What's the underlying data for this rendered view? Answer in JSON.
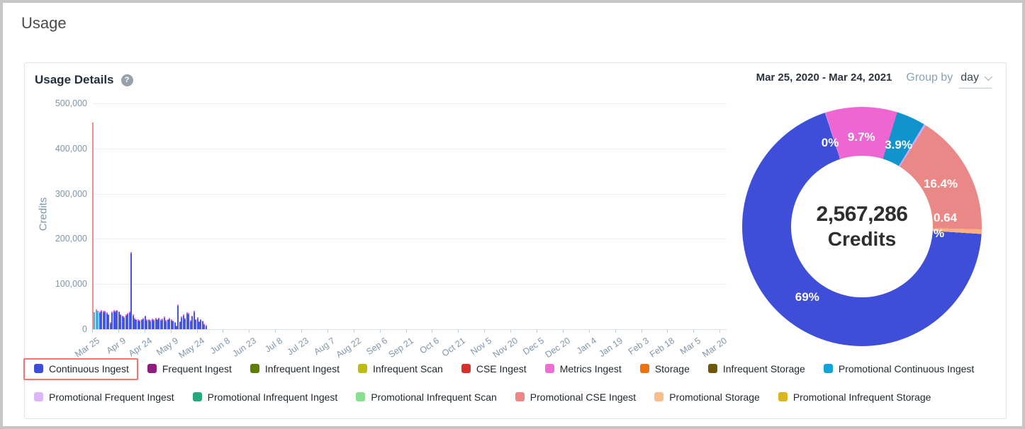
{
  "page": {
    "title": "Usage"
  },
  "card": {
    "title": "Usage Details",
    "help_icon_glyph": "?",
    "date_range": "Mar 25, 2020 - Mar 24, 2021",
    "group_by_label": "Group by",
    "group_by_value": "day"
  },
  "chart_data": [
    {
      "type": "bar",
      "title": "",
      "xlabel": "",
      "ylabel": "Credits",
      "ylim": [
        0,
        500000
      ],
      "ytick_labels": [
        "0",
        "100,000",
        "200,000",
        "300,000",
        "400,000",
        "500,000"
      ],
      "yticks": [
        0,
        100000,
        200000,
        300000,
        400000,
        500000
      ],
      "grid": true,
      "xtick_interval_days": 15,
      "date_range_days": 365,
      "xtick_labels": [
        "Mar 25",
        "Apr 9",
        "Apr 24",
        "May 9",
        "May 24",
        "Jun 8",
        "Jun 23",
        "Jul 8",
        "Jul 23",
        "Aug 7",
        "Aug 22",
        "Sep 6",
        "Sep 21",
        "Oct 6",
        "Oct 21",
        "Nov 5",
        "Nov 20",
        "Dec 5",
        "Dec 20",
        "Jan 4",
        "Jan 19",
        "Feb 3",
        "Feb 18",
        "Mar 5",
        "Mar 20"
      ],
      "bar_format": [
        "credits",
        "series_key",
        "metrics_tip_credits"
      ],
      "bar_series_colors": {
        "salmon": "#f2908e",
        "cyan": "#33b6e8",
        "blue": "#4556e3",
        "tip": "#ee6fd4"
      },
      "bar_series_names": {
        "salmon": "Promotional CSE Ingest",
        "cyan": "Promotional Continuous Ingest",
        "blue": "Continuous Ingest",
        "tip": "Metrics Ingest"
      },
      "bars": [
        [
          458000,
          "salmon",
          0
        ],
        [
          36000,
          "cyan",
          2000
        ],
        [
          41000,
          "cyan",
          2000
        ],
        [
          38000,
          "cyan",
          2000
        ],
        [
          36000,
          "blue",
          3000
        ],
        [
          39000,
          "blue",
          3000
        ],
        [
          37000,
          "blue",
          3000
        ],
        [
          38000,
          "blue",
          3000
        ],
        [
          35000,
          "blue",
          2500
        ],
        [
          31000,
          "blue",
          2500
        ],
        [
          13000,
          "blue",
          2000
        ],
        [
          36000,
          "blue",
          3000
        ],
        [
          39000,
          "blue",
          3000
        ],
        [
          38000,
          "blue",
          3000
        ],
        [
          40000,
          "blue",
          3000
        ],
        [
          37000,
          "blue",
          2500
        ],
        [
          31000,
          "blue",
          2500
        ],
        [
          28000,
          "blue",
          2500
        ],
        [
          25000,
          "blue",
          2500
        ],
        [
          30000,
          "blue",
          2500
        ],
        [
          33000,
          "blue",
          2500
        ],
        [
          36000,
          "blue",
          3000
        ],
        [
          167000,
          "blue",
          4000
        ],
        [
          30000,
          "blue",
          2500
        ],
        [
          22000,
          "blue",
          2500
        ],
        [
          20000,
          "blue",
          2000
        ],
        [
          19000,
          "blue",
          2000
        ],
        [
          18000,
          "blue",
          2000
        ],
        [
          20000,
          "blue",
          2000
        ],
        [
          22000,
          "blue",
          2500
        ],
        [
          28000,
          "blue",
          2500
        ],
        [
          19000,
          "blue",
          2000
        ],
        [
          20000,
          "blue",
          2000
        ],
        [
          18000,
          "blue",
          2000
        ],
        [
          21000,
          "blue",
          2000
        ],
        [
          19000,
          "blue",
          2000
        ],
        [
          22000,
          "blue",
          2500
        ],
        [
          20000,
          "blue",
          2000
        ],
        [
          23000,
          "blue",
          2500
        ],
        [
          19000,
          "blue",
          2000
        ],
        [
          21000,
          "blue",
          2000
        ],
        [
          25000,
          "blue",
          2500
        ],
        [
          18000,
          "blue",
          2000
        ],
        [
          20000,
          "blue",
          2000
        ],
        [
          22000,
          "blue",
          2000
        ],
        [
          19000,
          "blue",
          2000
        ],
        [
          17000,
          "blue",
          2000
        ],
        [
          14000,
          "blue",
          2000
        ],
        [
          6000,
          "blue",
          1500
        ],
        [
          52000,
          "blue",
          3000
        ],
        [
          15000,
          "blue",
          2000
        ],
        [
          25000,
          "blue",
          2500
        ],
        [
          30000,
          "blue",
          2500
        ],
        [
          22000,
          "blue",
          2000
        ],
        [
          35000,
          "blue",
          3000
        ],
        [
          33000,
          "blue",
          2500
        ],
        [
          18000,
          "blue",
          2000
        ],
        [
          28000,
          "blue",
          2500
        ],
        [
          38000,
          "blue",
          3000
        ],
        [
          20000,
          "blue",
          2000
        ],
        [
          24000,
          "blue",
          2500
        ],
        [
          15000,
          "blue",
          2000
        ],
        [
          20000,
          "blue",
          2000
        ],
        [
          17000,
          "blue",
          2000
        ],
        [
          10000,
          "blue",
          1500
        ],
        [
          7000,
          "blue",
          1500
        ]
      ]
    },
    {
      "type": "pie",
      "center_value": "2,567,286",
      "center_label": "Credits",
      "start_angle_deg": -18,
      "segments": [
        {
          "label": "0%",
          "pct": 0.06,
          "color": "#ddb5fa",
          "label_offset_deg": -3
        },
        {
          "label": "9.7%",
          "pct": 9.7,
          "color": "#ee66d1"
        },
        {
          "label": "3.9%",
          "pct": 3.9,
          "color": "#1193cd"
        },
        {
          "label": "",
          "pct": 0.3,
          "color": "#c9aaf5"
        },
        {
          "label": "16.4%",
          "pct": 16.4,
          "color": "#ea8787"
        },
        {
          "label": "0.64 %",
          "pct": 0.64,
          "color": "#fcb083",
          "label_offset_deg": -3,
          "label_width": 50
        },
        {
          "label": "69%",
          "pct": 69.0,
          "color": "#3f4ed8"
        }
      ]
    }
  ],
  "legend": {
    "rows": [
      [
        {
          "label": "Continuous Ingest",
          "color": "#3d4fd9"
        },
        {
          "label": "Frequent Ingest",
          "color": "#8e1e7e"
        },
        {
          "label": "Infrequent Ingest",
          "color": "#5f7d05"
        },
        {
          "label": "Infrequent Scan",
          "color": "#bcbd0e"
        },
        {
          "label": "CSE Ingest",
          "color": "#d5312e"
        },
        {
          "label": "Metrics Ingest",
          "color": "#ee6fd4"
        },
        {
          "label": "Storage",
          "color": "#f0710f"
        },
        {
          "label": "Infrequent Storage",
          "color": "#6e5807"
        },
        {
          "label": "Promotional Continuous Ingest",
          "color": "#16a3da"
        }
      ],
      [
        {
          "label": "Promotional Frequent Ingest",
          "color": "#ddb5fa"
        },
        {
          "label": "Promotional Infrequent Ingest",
          "color": "#27a87b"
        },
        {
          "label": "Promotional Infrequent Scan",
          "color": "#8ade90"
        },
        {
          "label": "Promotional CSE Ingest",
          "color": "#ef8585"
        },
        {
          "label": "Promotional Storage",
          "color": "#fbbd8d"
        },
        {
          "label": "Promotional Infrequent Storage",
          "color": "#dcb41f"
        }
      ]
    ],
    "highlight": {
      "item": "Continuous Ingest",
      "color": "#f3766c"
    }
  }
}
